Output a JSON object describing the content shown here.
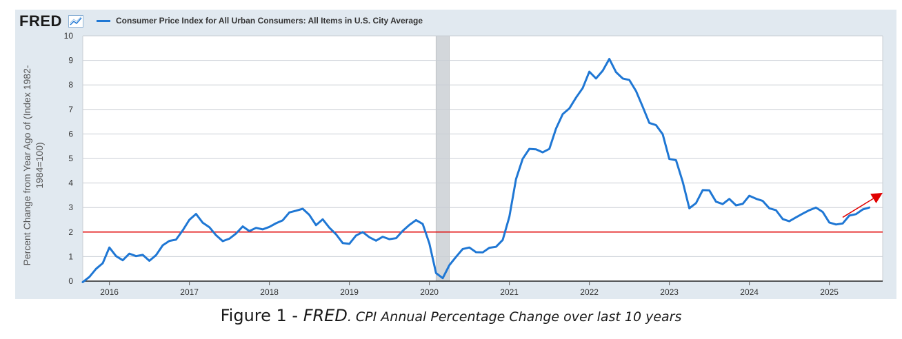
{
  "header": {
    "brand": "FRED",
    "brand_icon": "trend-chart-icon",
    "legend_label": "Consumer Price Index for All Urban Consumers: All Items in U.S. City Average"
  },
  "caption": {
    "lead": "Figure 1 - ",
    "source": "FRED",
    "rest": ". CPI Annual Percentage Change over last 10 years"
  },
  "colors": {
    "panel_bg": "#e1e9f0",
    "plot_bg": "#ffffff",
    "series": "#1f77d4",
    "threshold": "#e00000",
    "recession": "#d3d7db",
    "arrow": "#e00000"
  },
  "chart_data": {
    "type": "line",
    "title": "",
    "xlabel": "",
    "ylabel": "Percent Change from Year Ago of (Index 1982-1984=100)",
    "ylim": [
      0,
      10
    ],
    "xlim": [
      2015.667,
      2025.667
    ],
    "yticks": [
      0,
      1,
      2,
      3,
      4,
      5,
      6,
      7,
      8,
      9,
      10
    ],
    "xticks": [
      "2016",
      "2017",
      "2018",
      "2019",
      "2020",
      "2021",
      "2022",
      "2023",
      "2024",
      "2025"
    ],
    "grid": true,
    "legend_position": "top-left",
    "reference_line": {
      "y": 2.0
    },
    "recession_band": {
      "start": "2020-02",
      "end": "2020-04"
    },
    "trend_arrow": {
      "from": [
        "2025-03",
        2.6
      ],
      "to": [
        "2025-09",
        3.6
      ]
    },
    "series": [
      {
        "name": "Consumer Price Index for All Urban Consumers: All Items in U.S. City Average",
        "x_start": "2015-09",
        "frequency": "monthly",
        "values": [
          -0.04,
          0.17,
          0.5,
          0.73,
          1.37,
          1.02,
          0.85,
          1.12,
          1.02,
          1.07,
          0.83,
          1.06,
          1.46,
          1.64,
          1.69,
          2.07,
          2.5,
          2.74,
          2.38,
          2.2,
          1.87,
          1.63,
          1.73,
          1.94,
          2.23,
          2.04,
          2.17,
          2.11,
          2.21,
          2.36,
          2.48,
          2.8,
          2.87,
          2.95,
          2.7,
          2.28,
          2.52,
          2.18,
          1.91,
          1.55,
          1.52,
          1.86,
          2.0,
          1.79,
          1.65,
          1.81,
          1.71,
          1.75,
          2.05,
          2.29,
          2.49,
          2.33,
          1.54,
          0.33,
          0.12,
          0.65,
          0.99,
          1.31,
          1.37,
          1.18,
          1.17,
          1.36,
          1.4,
          1.68,
          2.62,
          4.16,
          4.99,
          5.39,
          5.37,
          5.25,
          5.39,
          6.22,
          6.81,
          7.04,
          7.48,
          7.87,
          8.54,
          8.26,
          8.58,
          9.06,
          8.52,
          8.26,
          8.2,
          7.75,
          7.11,
          6.45,
          6.36,
          5.99,
          4.98,
          4.93,
          4.05,
          2.97,
          3.18,
          3.71,
          3.7,
          3.24,
          3.14,
          3.35,
          3.09,
          3.15,
          3.48,
          3.36,
          3.27,
          2.97,
          2.89,
          2.53,
          2.44,
          2.6,
          2.75,
          2.89,
          3.0,
          2.82,
          2.39,
          2.31,
          2.35,
          2.67,
          2.73,
          2.92,
          3.0
        ]
      }
    ]
  }
}
